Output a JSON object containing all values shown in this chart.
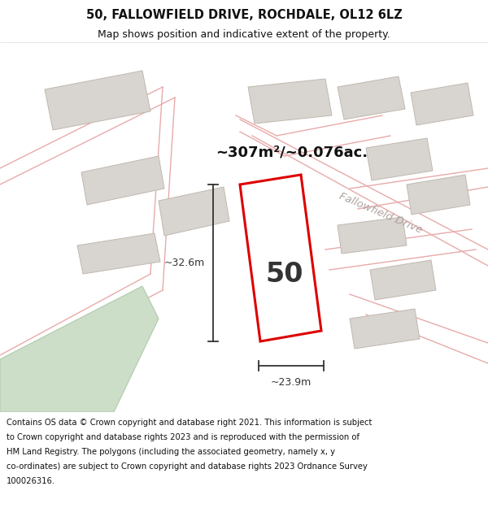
{
  "title": "50, FALLOWFIELD DRIVE, ROCHDALE, OL12 6LZ",
  "subtitle": "Map shows position and indicative extent of the property.",
  "area_text": "~307m²/~0.076ac.",
  "plot_number": "50",
  "dim_width": "~23.9m",
  "dim_height": "~32.6m",
  "road_label": "Fallowfield Drive",
  "footer_line1": "Contains OS data © Crown copyright and database right 2021. This information is subject",
  "footer_line2": "to Crown copyright and database rights 2023 and is reproduced with the permission of",
  "footer_line3": "HM Land Registry. The polygons (including the associated geometry, namely x, y",
  "footer_line4": "co-ordinates) are subject to Crown copyright and database rights 2023 Ordnance Survey",
  "footer_line5": "100026316.",
  "map_bg": "#ffffff",
  "plot_fill": "#ffffff",
  "plot_edge": "#dd0000",
  "road_line_color": "#e8aaaa",
  "building_fill": "#d8d4cf",
  "building_edge": "#c0b8b0",
  "green_fill": "#ccddc8",
  "green_edge": "#b0ccaa",
  "header_bg": "#ffffff",
  "footer_bg": "#ffffff",
  "dim_color": "#333333",
  "road_label_color": "#b0a0a0",
  "area_text_color": "#111111",
  "number_color": "#333333"
}
